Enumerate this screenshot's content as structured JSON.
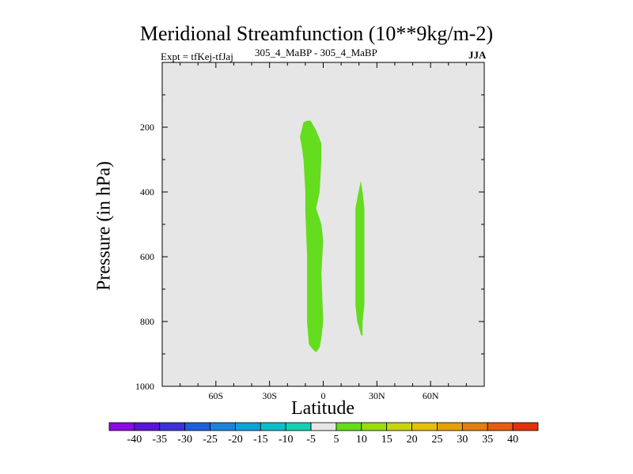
{
  "title": "Meridional Streamfunction (10**9kg/m-2)",
  "subtitle": "305_4_MaBP - 305_4_MaBP",
  "expt_label": "Expt = tfKej-tfJaj",
  "season": "JJA",
  "colors": {
    "background_field": "#e6e6e6",
    "positive_5_10": "#63dd1e"
  },
  "chart_data": {
    "type": "heatmap",
    "xlabel": "Latitude",
    "ylabel": "Pressure (in hPa)",
    "xlim": [
      -90,
      90
    ],
    "ylim": [
      1000,
      0
    ],
    "x_ticks": [
      {
        "value": -60,
        "label": "60S"
      },
      {
        "value": -30,
        "label": "30S"
      },
      {
        "value": 0,
        "label": "0"
      },
      {
        "value": 30,
        "label": "30N"
      },
      {
        "value": 60,
        "label": "60N"
      }
    ],
    "y_ticks": [
      {
        "value": 200,
        "label": "200"
      },
      {
        "value": 400,
        "label": "400"
      },
      {
        "value": 600,
        "label": "600"
      },
      {
        "value": 800,
        "label": "800"
      },
      {
        "value": 1000,
        "label": "1000"
      }
    ],
    "y_minor_ticks": [
      100,
      300,
      500,
      700,
      900
    ],
    "colorbar": {
      "labels": [
        "-40",
        "-35",
        "-30",
        "-25",
        "-20",
        "-15",
        "-10",
        "-5",
        "5",
        "10",
        "15",
        "20",
        "25",
        "30",
        "35",
        "40"
      ],
      "colors": [
        "#8a0ae0",
        "#5a14d6",
        "#3c32d8",
        "#1f5fd8",
        "#1e82d8",
        "#0ea2d8",
        "#10bcc8",
        "#16d0b0",
        "#e6e6e6",
        "#63dd1e",
        "#9adc0e",
        "#c8d410",
        "#e3c00c",
        "#e4a006",
        "#e08010",
        "#e45e12",
        "#e0320c"
      ]
    },
    "regions": [
      {
        "name": "tropical-cell-main",
        "range": [
          5,
          10
        ],
        "polygon": [
          [
            -9,
            180
          ],
          [
            -7,
            180
          ],
          [
            -4,
            210
          ],
          [
            -1,
            250
          ],
          [
            -1,
            300
          ],
          [
            -2,
            400
          ],
          [
            -4,
            450
          ],
          [
            -1,
            500
          ],
          [
            0,
            550
          ],
          [
            -1,
            650
          ],
          [
            0,
            800
          ],
          [
            -1,
            850
          ],
          [
            -2,
            880
          ],
          [
            -4,
            895
          ],
          [
            -6,
            885
          ],
          [
            -8,
            870
          ],
          [
            -9,
            800
          ],
          [
            -9,
            600
          ],
          [
            -10,
            460
          ],
          [
            -10,
            400
          ],
          [
            -11,
            300
          ],
          [
            -12,
            260
          ],
          [
            -13,
            230
          ],
          [
            -11,
            185
          ]
        ]
      },
      {
        "name": "subtropical-cell-north",
        "range": [
          5,
          10
        ],
        "polygon": [
          [
            21,
            365
          ],
          [
            22,
            400
          ],
          [
            23,
            450
          ],
          [
            23,
            600
          ],
          [
            23,
            750
          ],
          [
            22,
            800
          ],
          [
            22,
            845
          ],
          [
            21,
            840
          ],
          [
            19,
            800
          ],
          [
            18,
            750
          ],
          [
            18,
            600
          ],
          [
            18,
            450
          ],
          [
            19,
            420
          ]
        ]
      }
    ]
  }
}
